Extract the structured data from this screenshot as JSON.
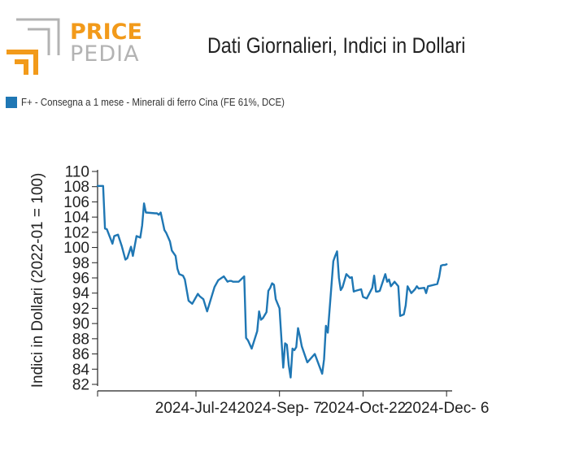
{
  "header": {
    "logo_word_top": "PRICE",
    "logo_word_bottom": "PEDIA",
    "title": "Dati Giornalieri, Indici in Dollari"
  },
  "colors": {
    "series": "#1f77b4",
    "logo_orange": "#f29a1a",
    "logo_gray": "#b3b3b3"
  },
  "chart_data": {
    "type": "line",
    "title": "Dati Giornalieri, Indici in Dollari",
    "xlabel": "",
    "ylabel": "Indici in Dollari (2022-01 = 100)",
    "ylim": [
      82,
      110
    ],
    "yticks": [
      82,
      84,
      86,
      88,
      90,
      92,
      94,
      96,
      98,
      100,
      102,
      104,
      106,
      108,
      110
    ],
    "xlim": [
      "2024-06-01",
      "2024-12-09"
    ],
    "xticks": [
      {
        "date": "2024-07-24",
        "label": "2024-Jul-24"
      },
      {
        "date": "2024-09-07",
        "label": "2024-Sep- 7"
      },
      {
        "date": "2024-10-22",
        "label": "2024-Oct-22"
      },
      {
        "date": "2024-12-06",
        "label": "2024-Dec- 6"
      }
    ],
    "legend_position": "top-left",
    "grid": false,
    "series": [
      {
        "name": "F+ - Consegna a 1 mese - Minerali di ferro Cina (FE 61%, DCE)",
        "x": [
          "2024-06-01",
          "2024-06-04",
          "2024-06-05",
          "2024-06-06",
          "2024-06-09",
          "2024-06-10",
          "2024-06-12",
          "2024-06-14",
          "2024-06-16",
          "2024-06-17",
          "2024-06-19",
          "2024-06-20",
          "2024-06-22",
          "2024-06-24",
          "2024-06-25",
          "2024-06-26",
          "2024-06-27",
          "2024-07-02",
          "2024-07-03",
          "2024-07-04",
          "2024-07-05",
          "2024-07-07",
          "2024-07-08",
          "2024-07-10",
          "2024-07-11",
          "2024-07-13",
          "2024-07-14",
          "2024-07-15",
          "2024-07-16",
          "2024-07-17",
          "2024-07-18",
          "2024-07-20",
          "2024-07-22",
          "2024-07-25",
          "2024-07-26",
          "2024-07-28",
          "2024-07-30",
          "2024-08-03",
          "2024-08-05",
          "2024-08-08",
          "2024-08-10",
          "2024-08-11",
          "2024-08-12",
          "2024-08-13",
          "2024-08-15",
          "2024-08-16",
          "2024-08-19",
          "2024-08-20",
          "2024-08-21",
          "2024-08-23",
          "2024-08-26",
          "2024-08-27",
          "2024-08-28",
          "2024-08-29",
          "2024-08-31",
          "2024-09-01",
          "2024-09-02",
          "2024-09-03",
          "2024-09-04",
          "2024-09-05",
          "2024-09-07",
          "2024-09-09",
          "2024-09-10",
          "2024-09-11",
          "2024-09-12",
          "2024-09-13",
          "2024-09-14",
          "2024-09-15",
          "2024-09-16",
          "2024-09-17",
          "2024-09-18",
          "2024-09-19",
          "2024-09-22",
          "2024-09-26",
          "2024-09-30",
          "2024-10-01",
          "2024-10-02",
          "2024-10-03",
          "2024-10-06",
          "2024-10-07",
          "2024-10-08",
          "2024-10-09",
          "2024-10-10",
          "2024-10-11",
          "2024-10-13",
          "2024-10-15",
          "2024-10-16",
          "2024-10-17",
          "2024-10-18",
          "2024-10-21",
          "2024-10-22",
          "2024-10-24",
          "2024-10-27",
          "2024-10-28",
          "2024-10-29",
          "2024-10-30",
          "2024-10-31",
          "2024-11-03",
          "2024-11-04",
          "2024-11-05",
          "2024-11-06",
          "2024-11-08",
          "2024-11-10",
          "2024-11-11",
          "2024-11-12",
          "2024-11-13",
          "2024-11-14",
          "2024-11-15",
          "2024-11-17",
          "2024-11-19",
          "2024-11-20",
          "2024-11-21",
          "2024-11-24",
          "2024-11-25",
          "2024-11-26",
          "2024-12-01",
          "2024-12-02",
          "2024-12-03",
          "2024-12-04",
          "2024-12-05",
          "2024-12-06"
        ],
        "y": [
          108.1,
          108.1,
          102.5,
          102.4,
          100.5,
          101.5,
          101.7,
          100.2,
          98.4,
          98.6,
          100.1,
          98.9,
          101.5,
          101.3,
          102.9,
          105.8,
          104.6,
          104.5,
          104.5,
          104.3,
          104.6,
          102.3,
          101.9,
          100.8,
          99.6,
          98.9,
          97.2,
          96.5,
          96.4,
          96.3,
          95.8,
          93.0,
          92.6,
          93.9,
          93.6,
          93.2,
          91.6,
          94.8,
          95.7,
          96.2,
          95.5,
          95.6,
          95.6,
          95.5,
          95.5,
          95.5,
          96.2,
          88.1,
          87.8,
          86.7,
          89.0,
          91.6,
          90.5,
          90.7,
          91.5,
          94.3,
          94.7,
          95.3,
          95.1,
          93.2,
          92.0,
          84.2,
          87.4,
          87.2,
          84.5,
          82.9,
          86.7,
          86.5,
          86.9,
          89.4,
          88.3,
          87.0,
          84.9,
          86.0,
          83.4,
          85.3,
          89.7,
          88.8,
          98.2,
          98.9,
          99.5,
          96.0,
          94.4,
          94.8,
          96.5,
          96.0,
          96.1,
          94.2,
          94.3,
          94.5,
          93.5,
          93.3,
          94.7,
          96.3,
          94.2,
          94.2,
          94.3,
          96.5,
          95.5,
          95.8,
          94.9,
          95.5,
          94.9,
          91.0,
          91.1,
          91.2,
          92.4,
          94.9,
          94.0,
          94.5,
          94.9,
          94.6,
          94.7,
          94.0,
          94.9,
          95.2,
          96.1,
          97.6,
          97.7,
          97.7,
          97.8
        ]
      }
    ]
  }
}
